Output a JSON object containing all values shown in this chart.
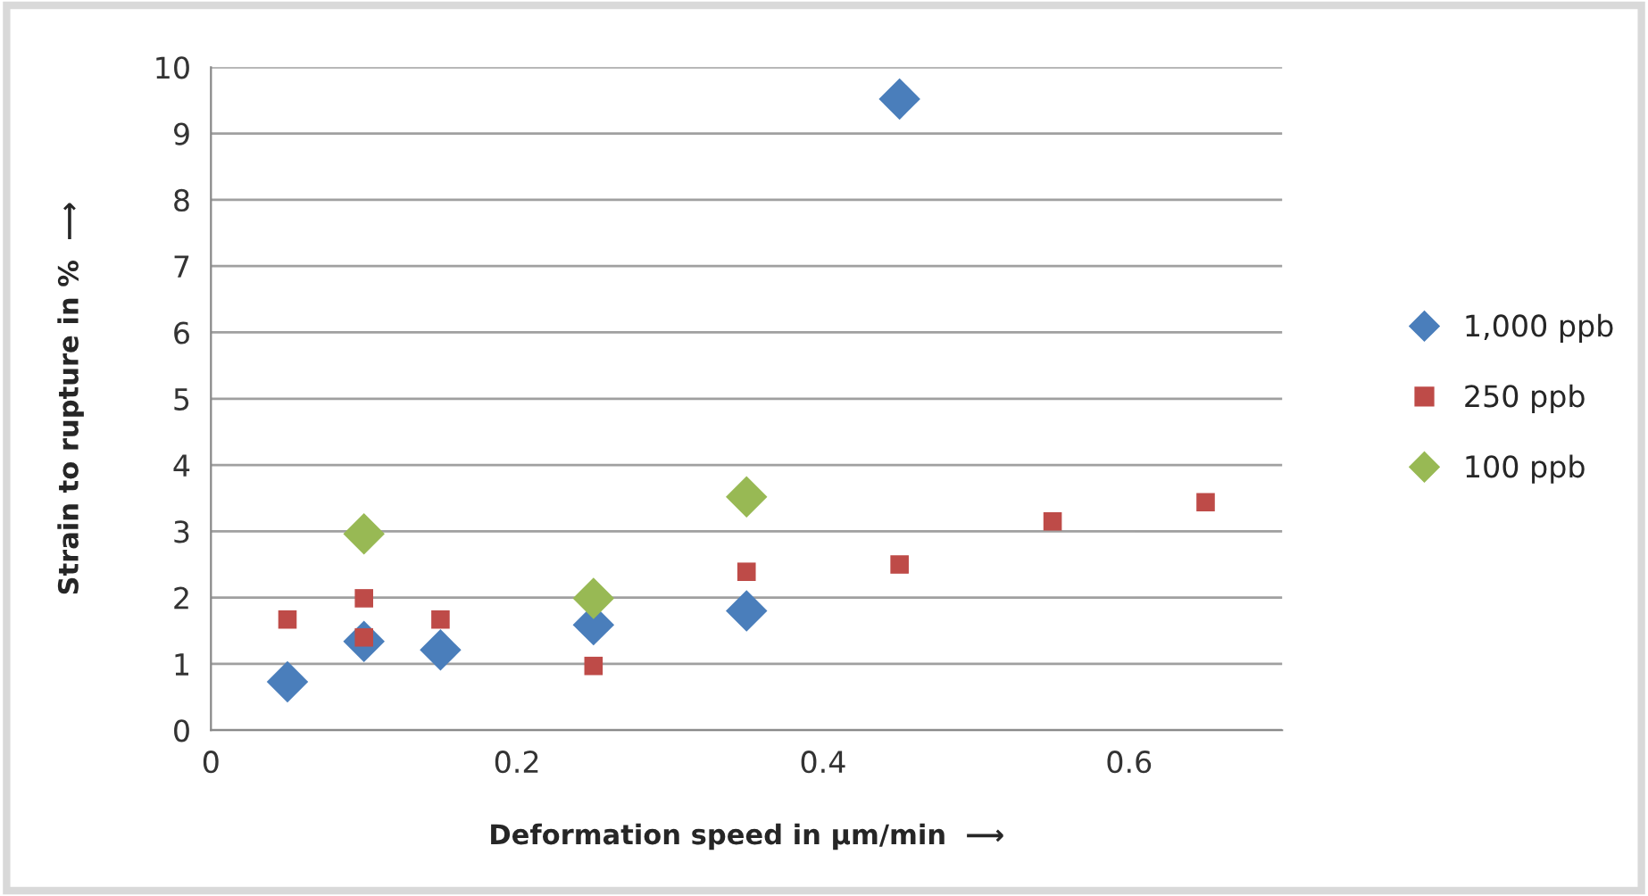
{
  "chart_data": {
    "type": "scatter",
    "xlabel": "Deformation speed in µm/min  ⟶",
    "ylabel": "Strain to rupture in %  ⟶",
    "series": [
      {
        "name": "1,000 ppb",
        "color": "#4a7ebb",
        "marker": "diamond",
        "x": [
          0.05,
          0.1,
          0.15,
          0.25,
          0.35,
          0.45
        ],
        "values": [
          0.73,
          1.34,
          1.21,
          1.59,
          1.8,
          9.52
        ]
      },
      {
        "name": "250 ppb",
        "color": "#be4b48",
        "marker": "square",
        "x": [
          0.05,
          0.1,
          0.1,
          0.15,
          0.25,
          0.35,
          0.45,
          0.55,
          0.65
        ],
        "values": [
          1.67,
          1.99,
          1.4,
          1.67,
          0.97,
          2.39,
          2.5,
          3.15,
          3.44
        ]
      },
      {
        "name": "100 ppb",
        "color": "#98b954",
        "marker": "diamond",
        "x": [
          0.1,
          0.25,
          0.35
        ],
        "values": [
          2.96,
          1.99,
          3.52
        ]
      }
    ],
    "xlim": [
      0,
      0.7
    ],
    "xticks": [
      0,
      0.2,
      0.4,
      0.6
    ],
    "ylim": [
      0,
      10
    ],
    "yticks": [
      0,
      1,
      2,
      3,
      4,
      5,
      6,
      7,
      8,
      9,
      10
    ],
    "grid": "y",
    "legend": "right"
  }
}
